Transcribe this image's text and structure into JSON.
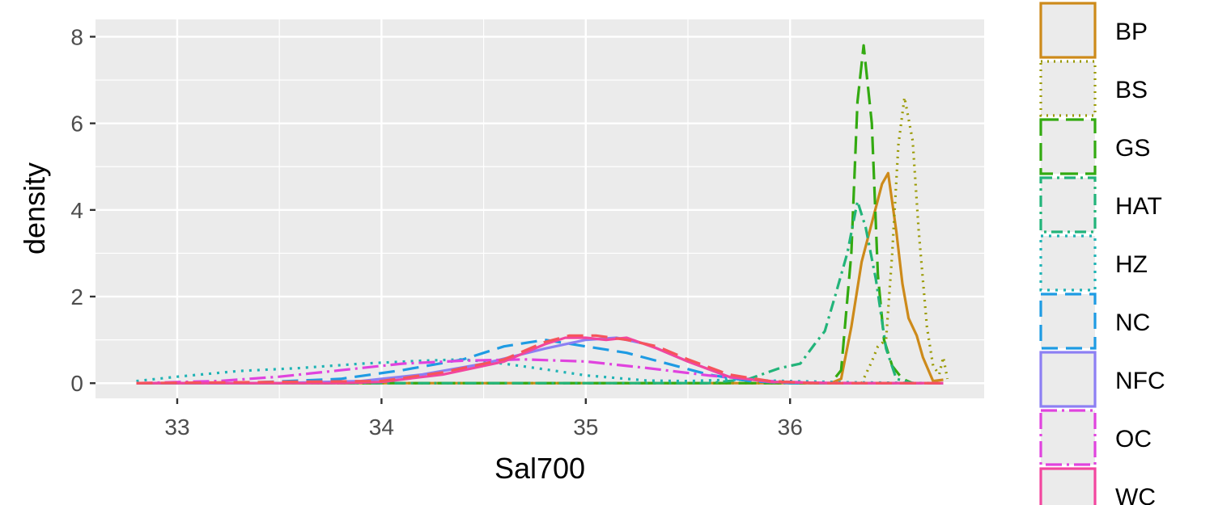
{
  "chart_data": {
    "type": "line",
    "subtype": "density",
    "title": "",
    "xlabel": "Sal700",
    "ylabel": "density",
    "xlim": [
      32.6,
      36.95
    ],
    "ylim": [
      -0.35,
      8.4
    ],
    "x_ticks": [
      33,
      34,
      35,
      36
    ],
    "y_ticks": [
      0,
      2,
      4,
      6,
      8
    ],
    "grid": true,
    "legend_position": "right",
    "series": [
      {
        "name": "BP",
        "color": "#CD8A1A",
        "dash": "solid",
        "points": [
          [
            32.8,
            0
          ],
          [
            36.2,
            0
          ],
          [
            36.25,
            0.1
          ],
          [
            36.3,
            1.3
          ],
          [
            36.35,
            2.8
          ],
          [
            36.4,
            3.7
          ],
          [
            36.45,
            4.6
          ],
          [
            36.48,
            4.85
          ],
          [
            36.52,
            3.5
          ],
          [
            36.55,
            2.3
          ],
          [
            36.58,
            1.5
          ],
          [
            36.62,
            1.1
          ],
          [
            36.65,
            0.6
          ],
          [
            36.7,
            0.05
          ],
          [
            36.75,
            0.08
          ]
        ]
      },
      {
        "name": "BS",
        "color": "#999900",
        "dash": "2 6",
        "points": [
          [
            32.8,
            0
          ],
          [
            36.35,
            0
          ],
          [
            36.4,
            0.5
          ],
          [
            36.43,
            0.85
          ],
          [
            36.47,
            1.0
          ],
          [
            36.5,
            3.0
          ],
          [
            36.53,
            5.5
          ],
          [
            36.56,
            6.6
          ],
          [
            36.6,
            5.6
          ],
          [
            36.63,
            3.5
          ],
          [
            36.67,
            1.3
          ],
          [
            36.7,
            0.4
          ],
          [
            36.73,
            0.2
          ],
          [
            36.75,
            0.6
          ],
          [
            36.77,
            0.1
          ]
        ]
      },
      {
        "name": "GS",
        "color": "#33AA11",
        "dash": "22 9",
        "points": [
          [
            32.8,
            0
          ],
          [
            36.2,
            0
          ],
          [
            36.25,
            0.3
          ],
          [
            36.3,
            3.0
          ],
          [
            36.33,
            6.5
          ],
          [
            36.36,
            7.8
          ],
          [
            36.4,
            6.0
          ],
          [
            36.43,
            2.5
          ],
          [
            36.46,
            1.0
          ],
          [
            36.5,
            0.4
          ],
          [
            36.55,
            0.1
          ],
          [
            36.6,
            0
          ]
        ]
      },
      {
        "name": "HAT",
        "color": "#22B47A",
        "dash": "14 6 3 6",
        "points": [
          [
            32.8,
            0
          ],
          [
            35.6,
            0
          ],
          [
            35.8,
            0.1
          ],
          [
            35.95,
            0.35
          ],
          [
            36.05,
            0.45
          ],
          [
            36.12,
            0.9
          ],
          [
            36.17,
            1.2
          ],
          [
            36.22,
            2.0
          ],
          [
            36.28,
            3.0
          ],
          [
            36.33,
            4.2
          ],
          [
            36.37,
            3.6
          ],
          [
            36.42,
            2.4
          ],
          [
            36.47,
            0.8
          ],
          [
            36.52,
            0.1
          ],
          [
            36.6,
            0
          ]
        ]
      },
      {
        "name": "HZ",
        "color": "#1FB3B5",
        "dash": "3 7",
        "points": [
          [
            32.8,
            0.05
          ],
          [
            33.0,
            0.15
          ],
          [
            33.3,
            0.28
          ],
          [
            33.6,
            0.35
          ],
          [
            33.9,
            0.45
          ],
          [
            34.2,
            0.52
          ],
          [
            34.4,
            0.55
          ],
          [
            34.6,
            0.45
          ],
          [
            34.8,
            0.32
          ],
          [
            35.0,
            0.18
          ],
          [
            35.3,
            0.06
          ],
          [
            35.5,
            0.05
          ],
          [
            35.7,
            0.08
          ],
          [
            36.0,
            0.05
          ],
          [
            36.3,
            0.02
          ],
          [
            36.75,
            0
          ]
        ]
      },
      {
        "name": "NC",
        "color": "#1E9BE3",
        "dash": "20 10",
        "points": [
          [
            32.8,
            0
          ],
          [
            33.3,
            0
          ],
          [
            33.8,
            0.1
          ],
          [
            34.1,
            0.3
          ],
          [
            34.4,
            0.55
          ],
          [
            34.6,
            0.85
          ],
          [
            34.8,
            1.0
          ],
          [
            35.0,
            0.85
          ],
          [
            35.2,
            0.7
          ],
          [
            35.4,
            0.45
          ],
          [
            35.6,
            0.2
          ],
          [
            35.8,
            0.05
          ],
          [
            36.0,
            0
          ],
          [
            36.75,
            0
          ]
        ]
      },
      {
        "name": "NFC",
        "color": "#8C7FF3",
        "dash": "solid",
        "points": [
          [
            32.8,
            0
          ],
          [
            33.5,
            0
          ],
          [
            33.9,
            0.05
          ],
          [
            34.2,
            0.2
          ],
          [
            34.5,
            0.45
          ],
          [
            34.8,
            0.8
          ],
          [
            35.0,
            1.0
          ],
          [
            35.15,
            1.05
          ],
          [
            35.3,
            0.9
          ],
          [
            35.5,
            0.5
          ],
          [
            35.7,
            0.15
          ],
          [
            35.9,
            0.03
          ],
          [
            36.2,
            0
          ],
          [
            36.75,
            0
          ]
        ]
      },
      {
        "name": "OC",
        "color": "#E043DE",
        "dash": "20 6 3 6",
        "points": [
          [
            32.8,
            0
          ],
          [
            33.2,
            0.05
          ],
          [
            33.5,
            0.15
          ],
          [
            33.8,
            0.3
          ],
          [
            34.1,
            0.45
          ],
          [
            34.4,
            0.52
          ],
          [
            34.7,
            0.55
          ],
          [
            35.0,
            0.5
          ],
          [
            35.3,
            0.35
          ],
          [
            35.6,
            0.18
          ],
          [
            35.9,
            0.05
          ],
          [
            36.1,
            0.01
          ],
          [
            36.4,
            0
          ],
          [
            36.75,
            0
          ]
        ]
      },
      {
        "name": "WC",
        "color": "#F2469F",
        "dash": "solid",
        "points": [
          [
            32.8,
            0
          ],
          [
            33.8,
            0
          ],
          [
            34.0,
            0.03
          ],
          [
            34.3,
            0.2
          ],
          [
            34.6,
            0.5
          ],
          [
            34.8,
            0.9
          ],
          [
            34.9,
            1.05
          ],
          [
            35.0,
            1.05
          ],
          [
            35.1,
            1.0
          ],
          [
            35.2,
            1.05
          ],
          [
            35.35,
            0.8
          ],
          [
            35.5,
            0.5
          ],
          [
            35.7,
            0.15
          ],
          [
            35.9,
            0.03
          ],
          [
            36.2,
            0
          ],
          [
            36.75,
            0
          ]
        ]
      },
      {
        "name": "",
        "color": "#F6545B",
        "dash": "20 10",
        "points": [
          [
            32.8,
            0
          ],
          [
            34.0,
            0.05
          ],
          [
            34.3,
            0.25
          ],
          [
            34.6,
            0.55
          ],
          [
            34.8,
            0.95
          ],
          [
            34.92,
            1.1
          ],
          [
            35.05,
            1.1
          ],
          [
            35.2,
            1.0
          ],
          [
            35.35,
            0.85
          ],
          [
            35.5,
            0.55
          ],
          [
            35.7,
            0.2
          ],
          [
            35.9,
            0.05
          ],
          [
            36.1,
            0
          ],
          [
            36.75,
            0
          ]
        ]
      }
    ]
  }
}
